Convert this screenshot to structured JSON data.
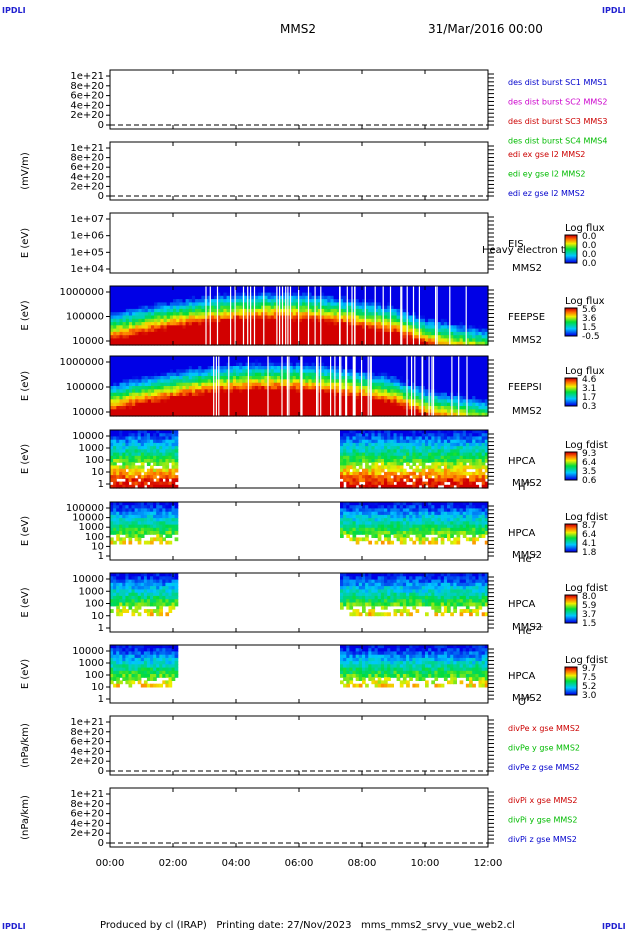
{
  "corners": {
    "tl": "IPDLI",
    "tr": "IPDLI",
    "bl": "IPDLI",
    "br": "IPDLI"
  },
  "header": {
    "spacecraft": "MMS2",
    "date": "31/Mar/2016 00:00"
  },
  "footer": {
    "text": "Produced by cl (IRAP)   Printing date: 27/Nov/2023   mms_mms2_srvy_vue_web2.cl"
  },
  "time_axis": {
    "ticks": [
      "00:00",
      "02:00",
      "04:00",
      "06:00",
      "08:00",
      "10:00",
      "12:00"
    ],
    "range_hours": [
      0,
      12
    ]
  },
  "chart_data": [
    {
      "type": "line",
      "ylabel": "",
      "yticks": [
        "1e+21",
        "8e+20",
        "6e+20",
        "4e+20",
        "2e+20",
        "0"
      ],
      "ylim": [
        0,
        1e+21
      ],
      "legend": [
        {
          "label": "des dist burst SC1 MMS1",
          "color": "#0000cc"
        },
        {
          "label": "des dist burst SC2 MMS2",
          "color": "#cc00cc"
        },
        {
          "label": "des dist burst SC3 MMS3",
          "color": "#cc0000"
        },
        {
          "label": "des dist burst SC4 MMS4",
          "color": "#00bb00"
        }
      ],
      "dashed_zero": true
    },
    {
      "type": "line",
      "ylabel": "(mV/m)",
      "yticks": [
        "1e+21",
        "8e+20",
        "6e+20",
        "4e+20",
        "2e+20",
        "0"
      ],
      "ylim": [
        0,
        1e+21
      ],
      "legend": [
        {
          "label": "edi ex gse l2 MMS2",
          "color": "#cc0000"
        },
        {
          "label": "edi ey gse l2 MMS2",
          "color": "#00bb00"
        },
        {
          "label": "edi ez gse l2 MMS2",
          "color": "#0000cc"
        }
      ],
      "dashed_zero": true
    },
    {
      "type": "heatmap",
      "ylabel": "E (eV)",
      "yticks": [
        "1e+07",
        "1e+06",
        "1e+05",
        "1e+04"
      ],
      "instrument": "EIS",
      "instrument_extra": "Heavy electron to",
      "spacecraft": "MMS2",
      "colorbar": {
        "title": "Log flux",
        "ticks": [
          "0.0",
          "0.0",
          "0.0",
          "0.0"
        ]
      },
      "coverage_hours": []
    },
    {
      "type": "heatmap",
      "ylabel": "E (eV)",
      "yticks": [
        "1000000",
        "100000",
        "10000"
      ],
      "instrument": "FEEPSE",
      "spacecraft": "MMS2",
      "colorbar": {
        "title": "Log flux",
        "ticks": [
          "5.6",
          "3.6",
          "1.5",
          "-0.5"
        ]
      },
      "coverage_hours": [
        [
          0,
          12
        ]
      ]
    },
    {
      "type": "heatmap",
      "ylabel": "E (eV)",
      "yticks": [
        "1000000",
        "100000",
        "10000"
      ],
      "instrument": "FEEPSI",
      "spacecraft": "MMS2",
      "colorbar": {
        "title": "Log flux",
        "ticks": [
          "4.6",
          "3.1",
          "1.7",
          "0.3"
        ]
      },
      "coverage_hours": [
        [
          0,
          12
        ]
      ]
    },
    {
      "type": "heatmap",
      "ylabel": "E (eV)",
      "yticks": [
        "10000",
        "1000",
        "100",
        "10",
        "1"
      ],
      "instrument": "HPCA",
      "spacecraft": "MMS2",
      "species": "H",
      "species_sup": "+",
      "colorbar": {
        "title": "Log fdist",
        "ticks": [
          "9.3",
          "6.4",
          "3.5",
          "0.6"
        ]
      },
      "coverage_hours": [
        [
          0,
          2.15
        ],
        [
          7.3,
          12
        ]
      ]
    },
    {
      "type": "heatmap",
      "ylabel": "E (eV)",
      "yticks": [
        "100000",
        "10000",
        "1000",
        "100",
        "10",
        "1"
      ],
      "instrument": "HPCA",
      "spacecraft": "MMS2",
      "species": "He",
      "species_sup": "+",
      "colorbar": {
        "title": "Log fdist",
        "ticks": [
          "8.7",
          "6.4",
          "4.1",
          "1.8"
        ]
      },
      "coverage_hours": [
        [
          0,
          2.15
        ],
        [
          7.3,
          12
        ]
      ]
    },
    {
      "type": "heatmap",
      "ylabel": "E (eV)",
      "yticks": [
        "10000",
        "1000",
        "100",
        "10",
        "1"
      ],
      "instrument": "HPCA",
      "spacecraft": "MMS2",
      "species": "He",
      "species_sup": "++",
      "colorbar": {
        "title": "Log fdist",
        "ticks": [
          "8.0",
          "5.9",
          "3.7",
          "1.5"
        ]
      },
      "coverage_hours": [
        [
          0,
          2.15
        ],
        [
          7.3,
          12
        ]
      ]
    },
    {
      "type": "heatmap",
      "ylabel": "E (eV)",
      "yticks": [
        "10000",
        "1000",
        "100",
        "10",
        "1"
      ],
      "instrument": "HPCA",
      "spacecraft": "MMS2",
      "species": "O",
      "species_sup": "+",
      "colorbar": {
        "title": "Log fdist",
        "ticks": [
          "9.7",
          "7.5",
          "5.2",
          "3.0"
        ]
      },
      "coverage_hours": [
        [
          0,
          2.15
        ],
        [
          7.3,
          12
        ]
      ]
    },
    {
      "type": "line",
      "ylabel": "(nPa/km)",
      "yticks": [
        "1e+21",
        "8e+20",
        "6e+20",
        "4e+20",
        "2e+20",
        "0"
      ],
      "ylim": [
        0,
        1e+21
      ],
      "legend": [
        {
          "label": "divPe x gse MMS2",
          "color": "#cc0000"
        },
        {
          "label": "divPe y gse MMS2",
          "color": "#00bb00"
        },
        {
          "label": "divPe z gse MMS2",
          "color": "#0000cc"
        }
      ],
      "dashed_zero": true
    },
    {
      "type": "line",
      "ylabel": "(nPa/km)",
      "yticks": [
        "1e+21",
        "8e+20",
        "6e+20",
        "4e+20",
        "2e+20",
        "0"
      ],
      "ylim": [
        0,
        1e+21
      ],
      "legend": [
        {
          "label": "divPi x gse MMS2",
          "color": "#cc0000"
        },
        {
          "label": "divPi y gse MMS2",
          "color": "#00bb00"
        },
        {
          "label": "divPi z gse MMS2",
          "color": "#0000cc"
        }
      ],
      "dashed_zero": true
    }
  ]
}
